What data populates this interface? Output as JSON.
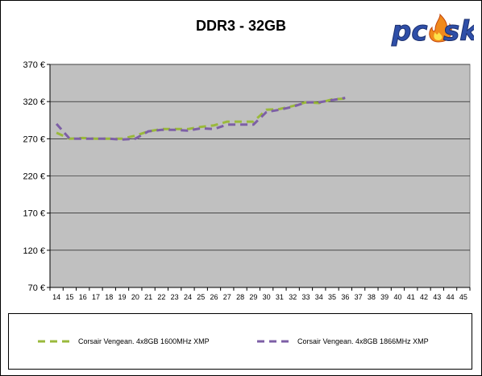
{
  "chart_data": {
    "type": "line",
    "title": "DDR3 - 32GB",
    "x": [
      14,
      15,
      16,
      17,
      18,
      19,
      20,
      21,
      22,
      23,
      24,
      25,
      26,
      27,
      28,
      29,
      30,
      31,
      32,
      33,
      34,
      35,
      36,
      37,
      38,
      39,
      40,
      41,
      42,
      43,
      44,
      45
    ],
    "y_ticks": [
      "70 €",
      "120 €",
      "170 €",
      "220 €",
      "270 €",
      "320 €",
      "370 €"
    ],
    "ylim": [
      70,
      370
    ],
    "grid": true,
    "legend_position": "bottom",
    "series": [
      {
        "name": "Corsair Vengean. 4x8GB 1600MHz XMP",
        "color": "#9ab93b",
        "values": [
          278,
          270,
          271,
          270,
          270,
          270,
          274,
          280,
          283,
          283,
          283,
          286,
          288,
          293,
          293,
          293,
          309,
          310,
          314,
          319,
          318,
          323,
          324,
          null,
          null,
          null,
          null,
          null,
          null,
          null,
          null,
          null
        ]
      },
      {
        "name": "Corsair Vengean. 4x8GB 1866MHz XMP",
        "color": "#7d5fa6",
        "values": [
          290,
          270,
          270,
          270,
          270,
          269,
          270,
          280,
          282,
          282,
          281,
          284,
          283,
          289,
          289,
          289,
          306,
          309,
          313,
          319,
          319,
          322,
          325,
          null,
          null,
          null,
          null,
          null,
          null,
          null,
          null,
          null
        ]
      }
    ]
  },
  "logo": {
    "text": "pc",
    "text2": "sk"
  }
}
